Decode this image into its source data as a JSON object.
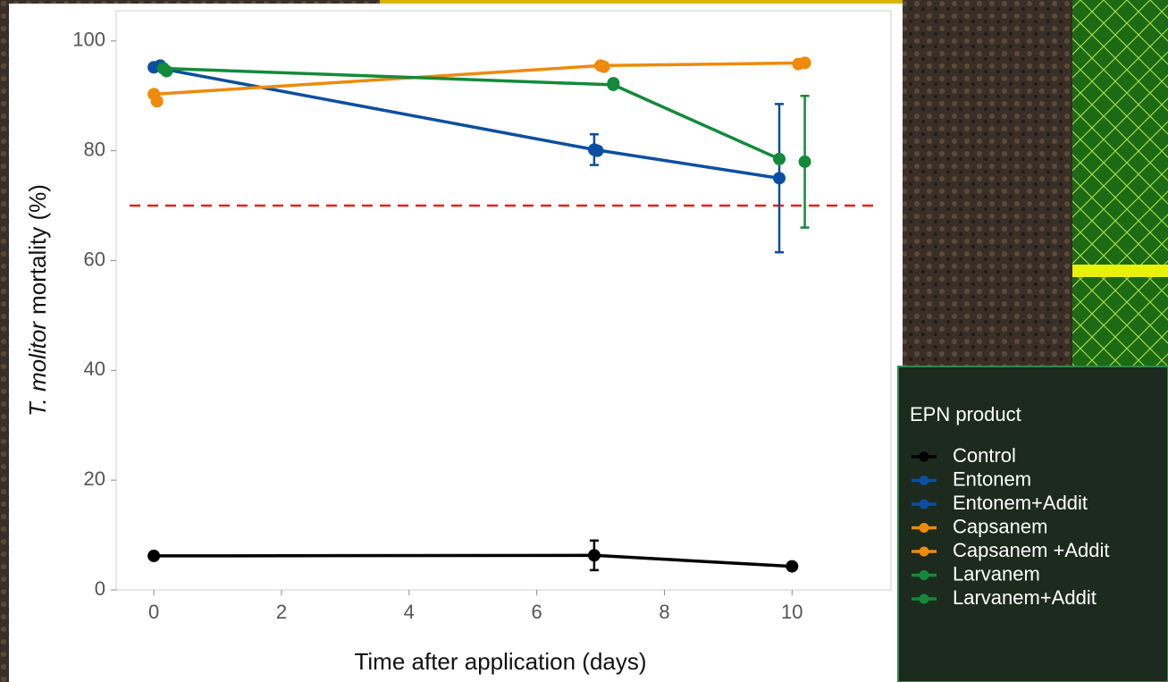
{
  "chart_data": {
    "type": "line",
    "ylabel_italic": "T. molitor",
    "ylabel": "mortality (%)",
    "xlabel": "Time after application (days)",
    "xlim": [
      -0.59,
      11.55
    ],
    "ylim": [
      0,
      105.5
    ],
    "xticks": [
      0,
      2,
      4,
      6,
      8,
      10
    ],
    "yticks": [
      0,
      20,
      40,
      60,
      80,
      100
    ],
    "threshold": {
      "value": 70,
      "color": "#ee1c1c"
    },
    "legend_title": "EPN product",
    "series": [
      {
        "name": "Control",
        "color": "#000000",
        "line": true,
        "x": [
          0,
          6.9,
          10
        ],
        "values": [
          6.2,
          6.3,
          4.3
        ],
        "errors": [
          null,
          2.7,
          null
        ]
      },
      {
        "name": "Entonem",
        "color": "#0b4fa0",
        "line": true,
        "x": [
          0,
          6.9,
          9.8
        ],
        "values": [
          95.2,
          80.2,
          75
        ],
        "errors": [
          null,
          2.8,
          13.5
        ]
      },
      {
        "name": "Entonem+Addit",
        "color": "#0b4fa0",
        "line": false,
        "x": [
          0.1,
          6.95
        ],
        "values": [
          95.5,
          80
        ],
        "errors": [
          null,
          null
        ]
      },
      {
        "name": "Capsanem",
        "color": "#ee8a0c",
        "line": true,
        "x": [
          0,
          7,
          10.2
        ],
        "values": [
          90.3,
          95.5,
          96
        ],
        "errors": [
          null,
          null,
          null
        ]
      },
      {
        "name": "Capsanem +Addit",
        "color": "#ee8a0c",
        "line": false,
        "x": [
          0.05,
          7.05,
          10.1
        ],
        "values": [
          89,
          95.3,
          95.8
        ],
        "errors": [
          null,
          null,
          null
        ]
      },
      {
        "name": "Larvanem",
        "color": "#138a3a",
        "line": true,
        "x": [
          0.15,
          7.2,
          9.8
        ],
        "values": [
          95,
          92,
          78.5
        ],
        "errors": [
          null,
          null,
          null
        ]
      },
      {
        "name": "Larvanem+Addit",
        "color": "#138a3a",
        "line": false,
        "x": [
          0.2,
          7.2,
          10.2
        ],
        "values": [
          94.5,
          92.3,
          78
        ],
        "errors": [
          null,
          null,
          12
        ]
      }
    ]
  }
}
